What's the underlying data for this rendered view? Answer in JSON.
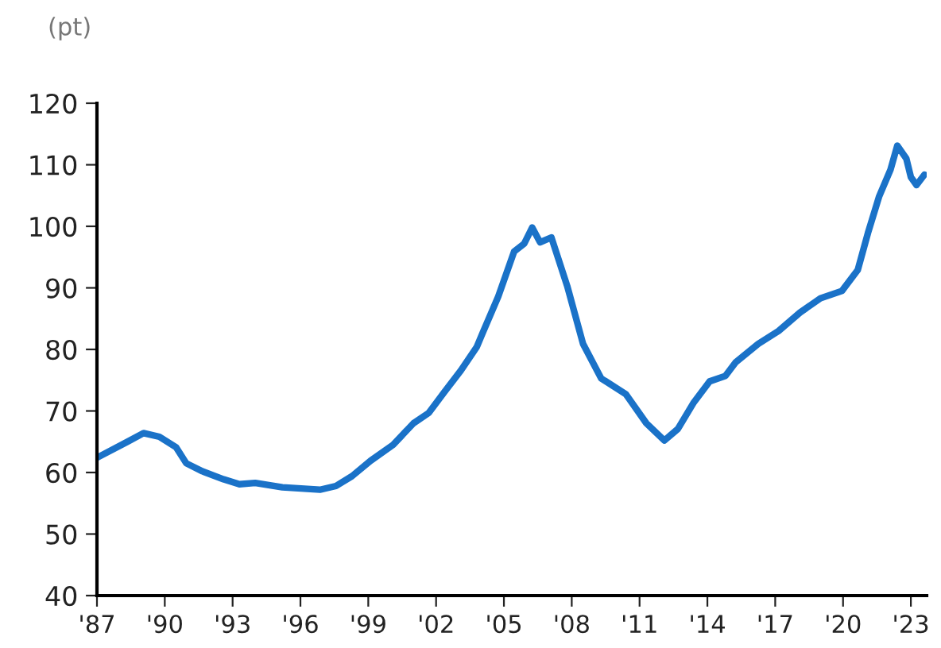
{
  "chart_data": {
    "type": "line",
    "ylabel": "(pt)",
    "x": [
      1987.0,
      1988.35,
      1989.06,
      1989.76,
      1990.5,
      1990.95,
      1991.66,
      1992.6,
      1993.3,
      1994.0,
      1995.2,
      1996.86,
      1997.57,
      1998.28,
      1999.1,
      2000.1,
      2001.0,
      2001.68,
      2002.37,
      2003.1,
      2003.8,
      2004.05,
      2004.75,
      2005.45,
      2005.9,
      2006.25,
      2006.6,
      2007.1,
      2007.8,
      2008.5,
      2009.3,
      2010.4,
      2011.3,
      2012.1,
      2012.7,
      2013.4,
      2014.1,
      2014.8,
      2015.25,
      2016.25,
      2017.15,
      2018.1,
      2019.0,
      2019.95,
      2020.65,
      2021.1,
      2021.6,
      2022.1,
      2022.4,
      2022.8,
      2023.0,
      2023.25,
      2023.6
    ],
    "series": [
      {
        "color": "#1a72c8",
        "values": [
          62.4,
          65.0,
          66.4,
          65.8,
          64.1,
          61.5,
          60.2,
          58.9,
          58.1,
          58.3,
          57.6,
          57.2,
          57.8,
          59.4,
          61.9,
          64.5,
          68.0,
          69.7,
          73.1,
          76.6,
          80.4,
          82.6,
          88.6,
          95.9,
          97.2,
          99.8,
          97.4,
          98.2,
          90.3,
          80.9,
          75.3,
          72.7,
          68.0,
          65.2,
          67.1,
          71.4,
          74.8,
          75.7,
          77.9,
          80.9,
          83.0,
          86.0,
          88.3,
          89.5,
          92.9,
          98.9,
          104.9,
          109.2,
          113.1,
          111.0,
          108.0,
          106.7,
          108.4
        ]
      }
    ],
    "xlim": [
      1987,
      2023.7
    ],
    "xticks": [
      {
        "value": 1987,
        "label": "'87"
      },
      {
        "value": 1990,
        "label": "'90"
      },
      {
        "value": 1993,
        "label": "'93"
      },
      {
        "value": 1996,
        "label": "'96"
      },
      {
        "value": 1999,
        "label": "'99"
      },
      {
        "value": 2002,
        "label": "'02"
      },
      {
        "value": 2005,
        "label": "'05"
      },
      {
        "value": 2008,
        "label": "'08"
      },
      {
        "value": 2011,
        "label": "'11"
      },
      {
        "value": 2014,
        "label": "'14"
      },
      {
        "value": 2017,
        "label": "'17"
      },
      {
        "value": 2020,
        "label": "'20"
      },
      {
        "value": 2023,
        "label": "'23"
      }
    ],
    "ylim": [
      40,
      120
    ],
    "yticks": [
      40,
      50,
      60,
      70,
      80,
      90,
      100,
      110,
      120
    ],
    "grid": false,
    "marker": "none",
    "line_style": "solid"
  }
}
